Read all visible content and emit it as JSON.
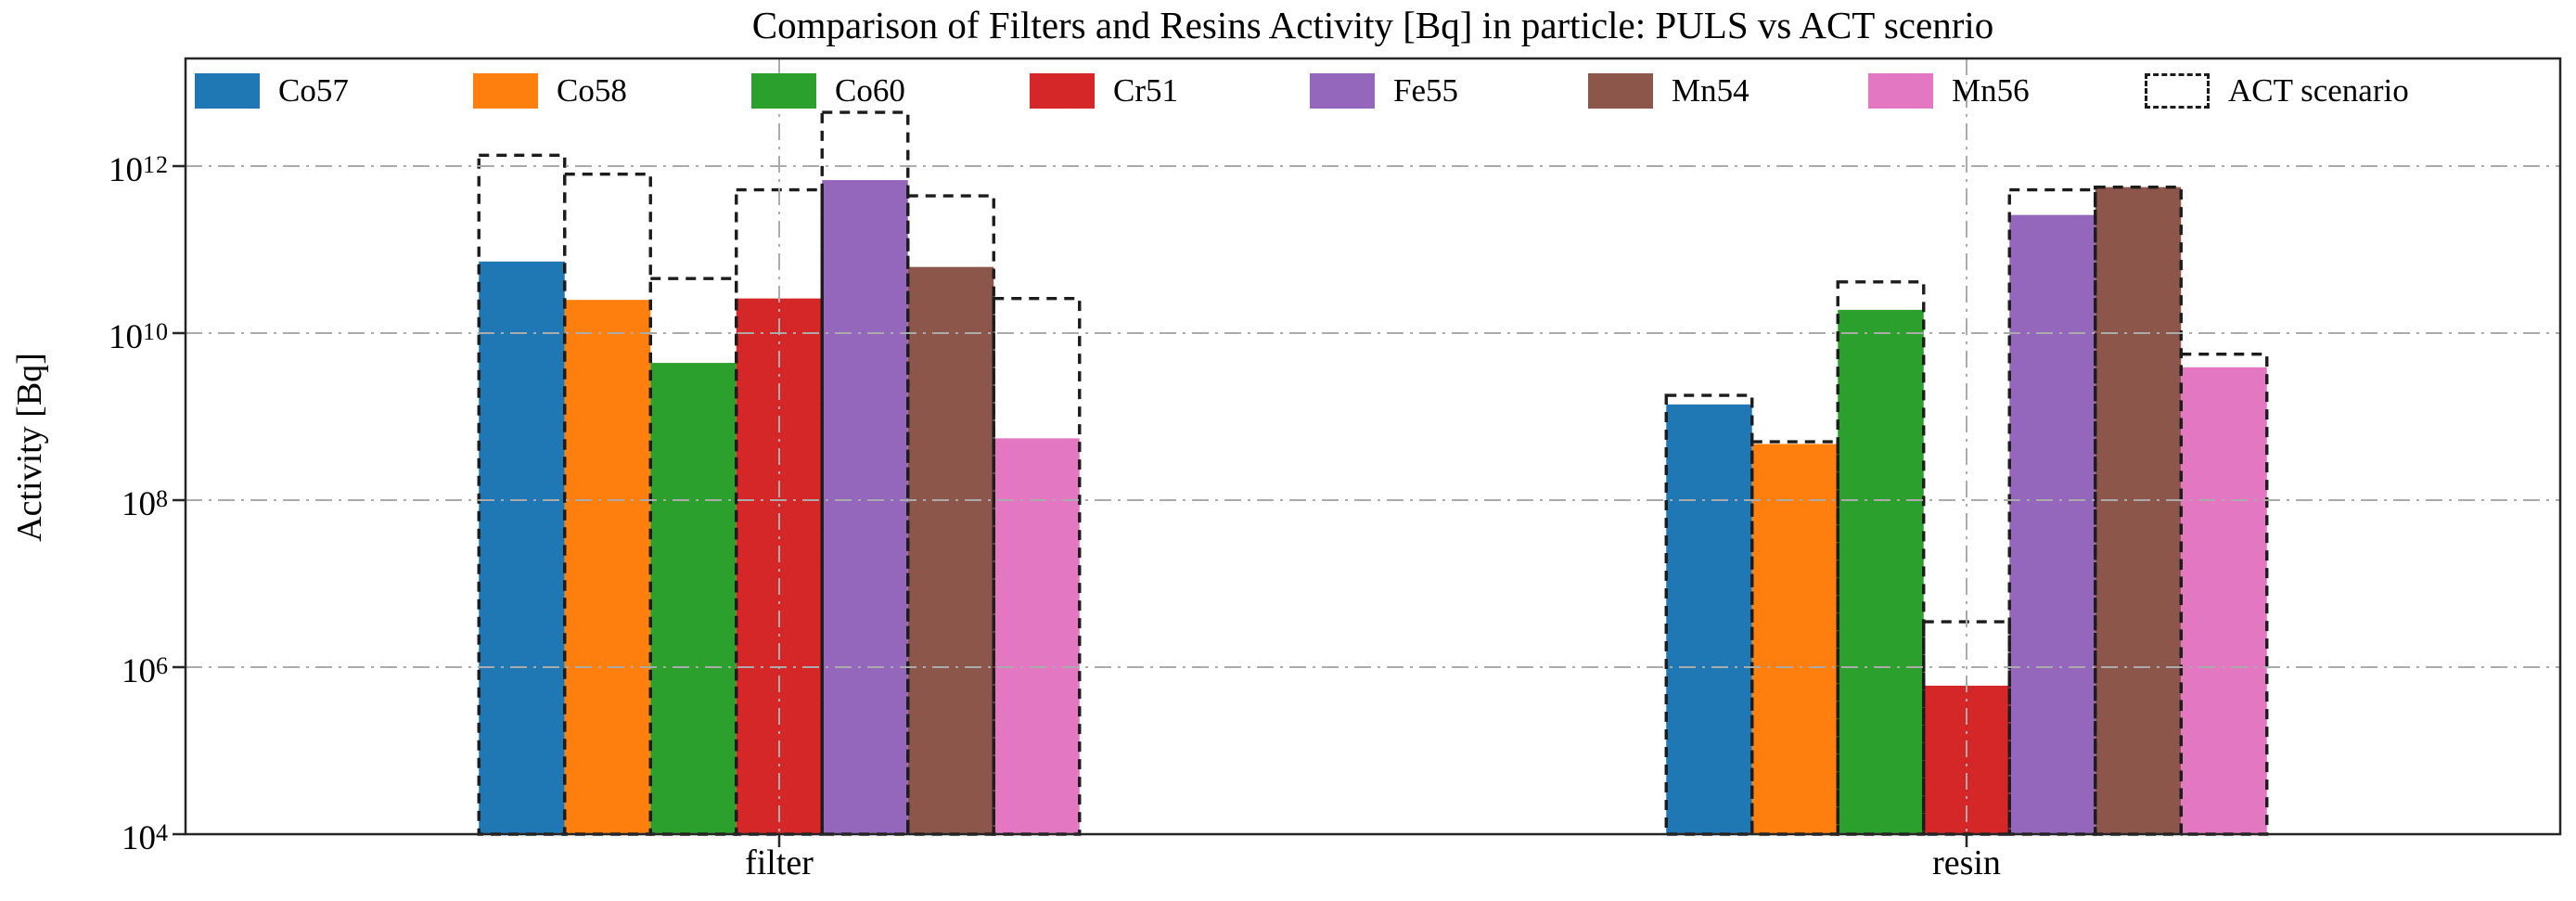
{
  "chart_data": {
    "type": "bar",
    "title": "Comparison of Filters and Resins Activity [Bq] in particle: PULS vs ACT scenrio",
    "ylabel": "Activity [Bq]",
    "xlabel": "",
    "yscale": "log",
    "ylim": [
      10000,
      20000000000000
    ],
    "ytick_exponents": [
      12,
      10,
      8,
      6,
      4
    ],
    "grid": true,
    "grid_style": "dash-dot",
    "legend_position": "top-inside",
    "categories": [
      "filter",
      "resin"
    ],
    "act_label": "ACT scenario",
    "legend_entries": [
      "Co57",
      "Co58",
      "Co60",
      "Cr51",
      "Fe55",
      "Mn54",
      "Mn56",
      "ACT scenario"
    ],
    "series": [
      {
        "name": "Co57",
        "color": "#1f77b4",
        "puls": [
          72000000000.0,
          1400000000.0
        ],
        "act": [
          1350000000000.0,
          1800000000.0
        ]
      },
      {
        "name": "Co58",
        "color": "#ff7f0e",
        "puls": [
          25000000000.0,
          470000000.0
        ],
        "act": [
          800000000000.0,
          500000000.0
        ]
      },
      {
        "name": "Co60",
        "color": "#2ca02c",
        "puls": [
          4400000000.0,
          19000000000.0
        ],
        "act": [
          45000000000.0,
          41000000000.0
        ]
      },
      {
        "name": "Cr51",
        "color": "#d62728",
        "puls": [
          26000000000.0,
          600000.0
        ],
        "act": [
          520000000000.0,
          3500000.0
        ]
      },
      {
        "name": "Fe55",
        "color": "#9467bd",
        "puls": [
          680000000000.0,
          260000000000.0
        ],
        "act": [
          4400000000000.0,
          520000000000.0
        ]
      },
      {
        "name": "Mn54",
        "color": "#8c564b",
        "puls": [
          62000000000.0,
          560000000000.0
        ],
        "act": [
          440000000000.0,
          560000000000.0
        ]
      },
      {
        "name": "Mn56",
        "color": "#e377c2",
        "puls": [
          550000000.0,
          3900000000.0
        ],
        "act": [
          26000000000.0,
          5600000000.0
        ]
      }
    ],
    "series_note": "puls = filled bars (PULS scenario), act = dashed-outline overlay bars (ACT scenario); values in Bq for [filter, resin]"
  },
  "colors": {
    "background": "#ffffff",
    "grid": "#ababab",
    "spine": "#262626",
    "act_edge": "#1c1c1c",
    "text": "#000000"
  }
}
